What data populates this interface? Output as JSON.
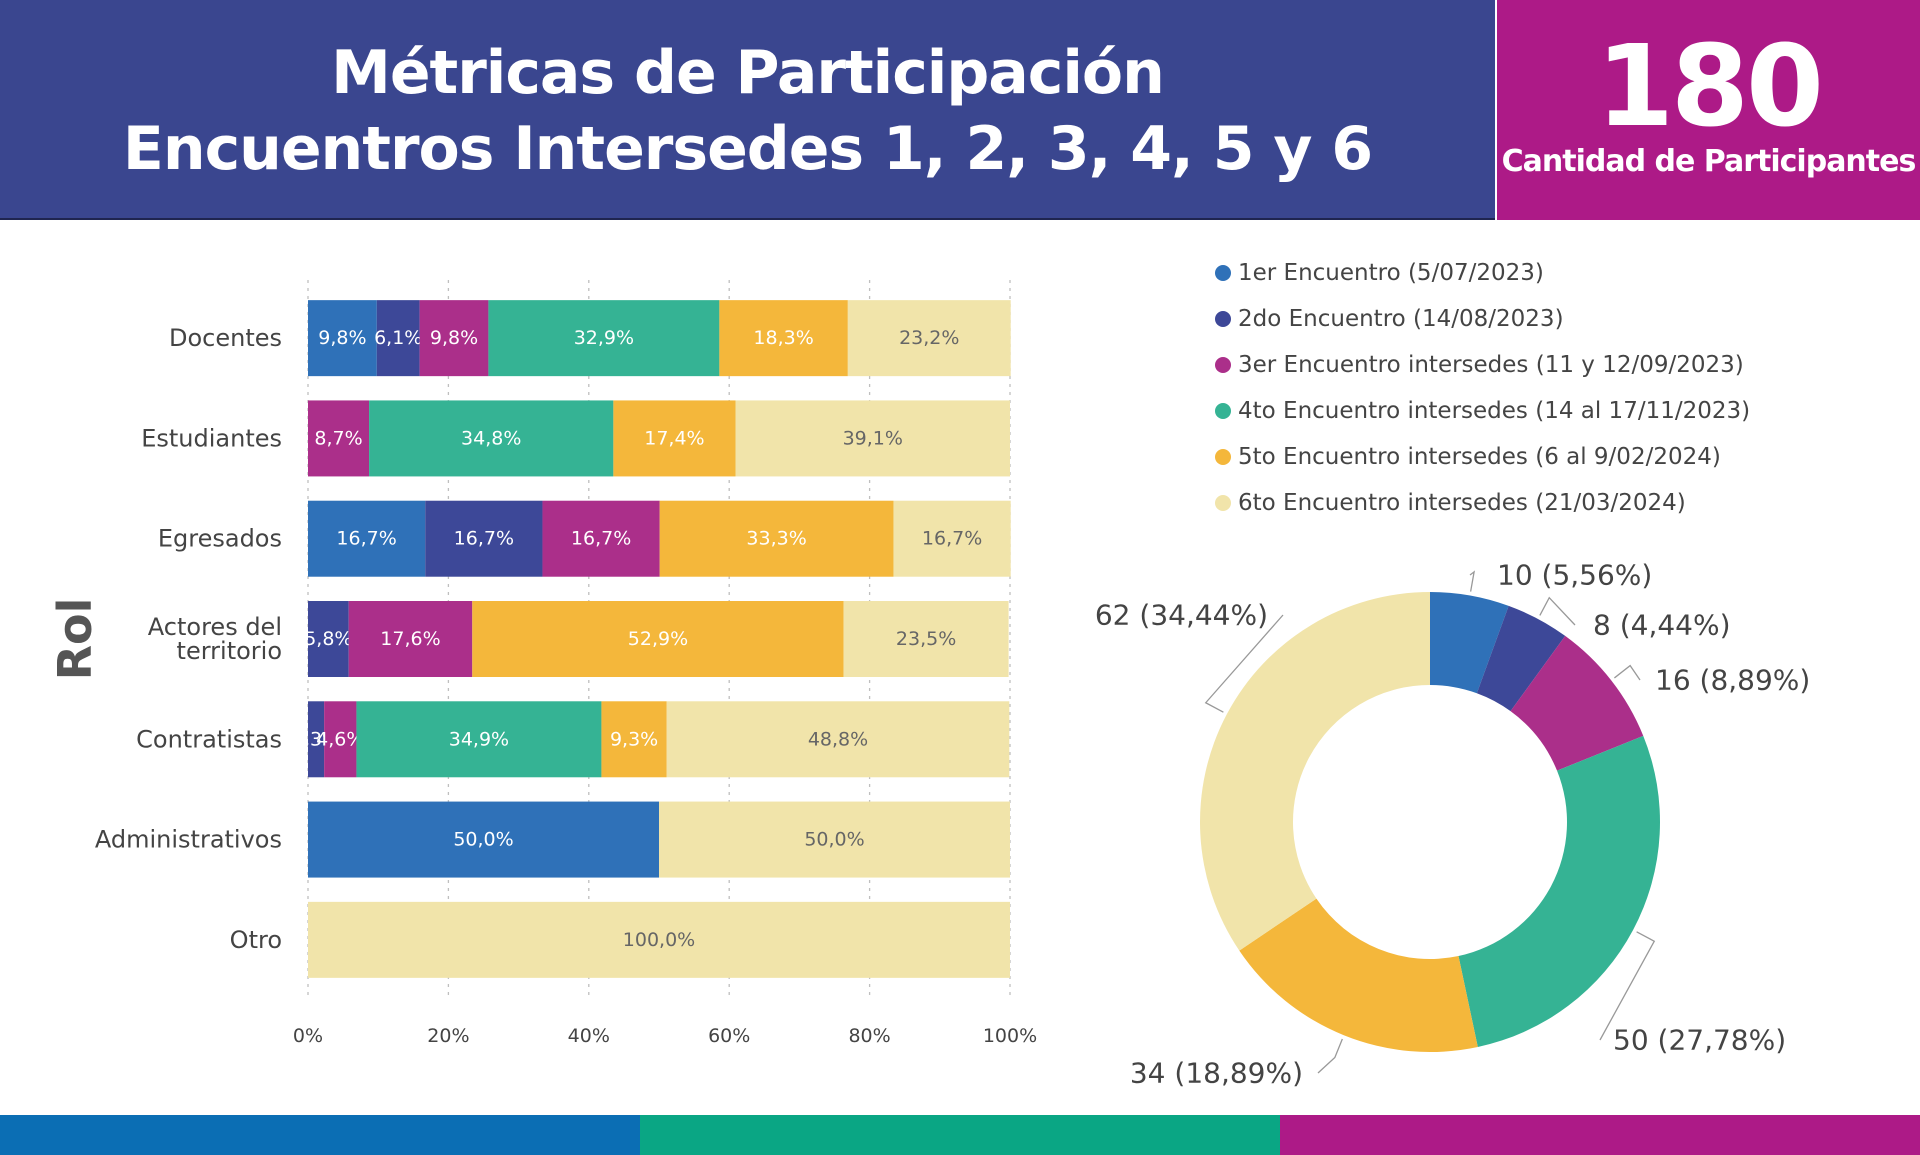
{
  "header": {
    "title_line1": "Métricas de Participación",
    "title_line2": "Encuentros Intersedes 1, 2, 3, 4, 5 y 6",
    "count": "180",
    "count_label": "Cantidad de Participantes"
  },
  "colors": {
    "header_bg": "#3a468f",
    "count_bg": "#ad1a87",
    "footer": [
      "#0b6eb4",
      "#0aa684",
      "#ad1a87"
    ]
  },
  "chart_data": [
    {
      "type": "bar",
      "orientation": "horizontal",
      "stacked": true,
      "ylabel": "Rol",
      "xlim": [
        0,
        100
      ],
      "x_ticks": [
        "0%",
        "20%",
        "40%",
        "60%",
        "80%",
        "100%"
      ],
      "grid": true,
      "categories": [
        "Docentes",
        "Estudiantes",
        "Egresados",
        "Actores del territorio",
        "Contratistas",
        "Administrativos",
        "Otro"
      ],
      "series": [
        {
          "name": "1er Encuentro (5/07/2023)",
          "color": "#2f71b8",
          "values": [
            9.8,
            0,
            16.7,
            0,
            0,
            50.0,
            0
          ],
          "labels": [
            "9,8%",
            "",
            "16,7%",
            "",
            "",
            "50,0%",
            ""
          ]
        },
        {
          "name": "2do Encuentro (14/08/2023)",
          "color": "#3d4898",
          "values": [
            6.1,
            0,
            16.7,
            5.8,
            2.3,
            0,
            0
          ],
          "labels": [
            "6,1%",
            "",
            "16,7%",
            "5,8%",
            "2,3%",
            "",
            ""
          ]
        },
        {
          "name": "3er Encuentro intersedes (11 y 12/09/2023)",
          "color": "#ab2f8a",
          "values": [
            9.8,
            8.7,
            16.7,
            17.6,
            4.6,
            0,
            0
          ],
          "labels": [
            "9,8%",
            "8,7%",
            "16,7%",
            "17,6%",
            "4,6%",
            "",
            ""
          ]
        },
        {
          "name": "4to Encuentro intersedes (14 al 17/11/2023)",
          "color": "#35b394",
          "values": [
            32.9,
            34.8,
            0,
            0,
            34.9,
            0,
            0
          ],
          "labels": [
            "32,9%",
            "34,8%",
            "",
            "",
            "34,9%",
            "",
            ""
          ]
        },
        {
          "name": "5to Encuentro intersedes (6 al 9/02/2024)",
          "color": "#f4b73b",
          "values": [
            18.3,
            17.4,
            33.3,
            52.9,
            9.3,
            0,
            0
          ],
          "labels": [
            "18,3%",
            "17,4%",
            "33,3%",
            "52,9%",
            "9,3%",
            "",
            ""
          ]
        },
        {
          "name": "6to Encuentro intersedes (21/03/2024)",
          "color": "#f1e4aa",
          "values": [
            23.2,
            39.1,
            16.7,
            23.5,
            48.8,
            50.0,
            100.0
          ],
          "labels": [
            "23,2%",
            "39,1%",
            "16,7%",
            "23,5%",
            "48,8%",
            "50,0%",
            "100,0%"
          ]
        }
      ]
    },
    {
      "type": "pie",
      "donut": true,
      "legend": "top",
      "slices": [
        {
          "name": "1er Encuentro (5/07/2023)",
          "value": 10,
          "label": "10 (5,56%)",
          "color": "#2f71b8"
        },
        {
          "name": "2do Encuentro (14/08/2023)",
          "value": 8,
          "label": "8 (4,44%)",
          "color": "#3d4898"
        },
        {
          "name": "3er Encuentro intersedes (11 y 12/09/2023)",
          "value": 16,
          "label": "16 (8,89%)",
          "color": "#ab2f8a"
        },
        {
          "name": "4to Encuentro intersedes (14 al 17/11/2023)",
          "value": 50,
          "label": "50 (27,78%)",
          "color": "#35b394"
        },
        {
          "name": "5to Encuentro intersedes (6 al 9/02/2024)",
          "value": 34,
          "label": "34 (18,89%)",
          "color": "#f4b73b"
        },
        {
          "name": "6to Encuentro intersedes (21/03/2024)",
          "value": 62,
          "label": "62 (34,44%)",
          "color": "#f1e4aa"
        }
      ]
    }
  ]
}
